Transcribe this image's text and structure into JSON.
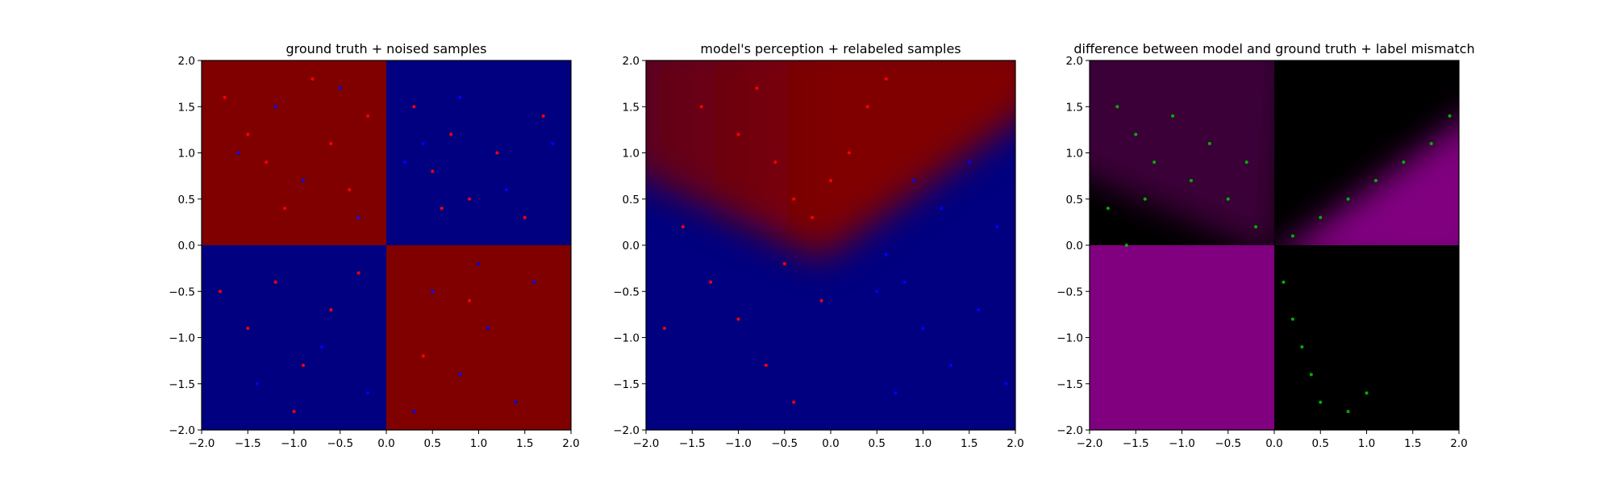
{
  "chart_data": [
    {
      "type": "heatmap",
      "title": "ground truth + noised samples",
      "xlabel": "",
      "ylabel": "",
      "xlim": [
        -2.0,
        2.0
      ],
      "ylim": [
        -2.0,
        2.0
      ],
      "xticks": [
        "−2.0",
        "−1.5",
        "−1.0",
        "−0.5",
        "0.0",
        "0.5",
        "1.0",
        "1.5",
        "2.0"
      ],
      "yticks": [
        "−2.0",
        "−1.5",
        "−1.0",
        "−0.5",
        "0.0",
        "0.5",
        "1.0",
        "1.5",
        "2.0"
      ],
      "grid": false,
      "background": {
        "kind": "quadrant-xor",
        "description_regions": [
          {
            "x": [
              -2,
              0
            ],
            "y": [
              0,
              2
            ],
            "color": "#800000"
          },
          {
            "x": [
              0,
              2
            ],
            "y": [
              0,
              2
            ],
            "color": "#000080"
          },
          {
            "x": [
              -2,
              0
            ],
            "y": [
              -2,
              0
            ],
            "color": "#000080"
          },
          {
            "x": [
              0,
              2
            ],
            "y": [
              -2,
              0
            ],
            "color": "#800000"
          }
        ]
      },
      "series": [
        {
          "color": "#ff0000",
          "marker": "dot",
          "values": [
            [
              -1.75,
              1.6
            ],
            [
              -1.5,
              1.2
            ],
            [
              -1.3,
              0.9
            ],
            [
              -1.1,
              0.4
            ],
            [
              -0.8,
              1.8
            ],
            [
              -0.6,
              1.1
            ],
            [
              -0.4,
              0.6
            ],
            [
              -0.2,
              1.4
            ],
            [
              0.3,
              1.5
            ],
            [
              0.5,
              0.8
            ],
            [
              0.7,
              1.2
            ],
            [
              0.9,
              0.5
            ],
            [
              1.2,
              1.0
            ],
            [
              1.5,
              0.3
            ],
            [
              1.7,
              1.4
            ],
            [
              0.6,
              0.4
            ],
            [
              -1.8,
              -0.5
            ],
            [
              -1.5,
              -0.9
            ],
            [
              -1.2,
              -0.4
            ],
            [
              -0.9,
              -1.3
            ],
            [
              -0.6,
              -0.7
            ],
            [
              -0.3,
              -0.3
            ],
            [
              -1.0,
              -1.8
            ],
            [
              0.4,
              -1.2
            ],
            [
              0.9,
              -0.6
            ]
          ]
        },
        {
          "color": "#0000ff",
          "marker": "dot",
          "values": [
            [
              -1.6,
              1.0
            ],
            [
              -1.2,
              1.5
            ],
            [
              -0.9,
              0.7
            ],
            [
              -0.5,
              1.7
            ],
            [
              -0.3,
              0.3
            ],
            [
              0.4,
              1.1
            ],
            [
              0.8,
              1.6
            ],
            [
              1.3,
              0.6
            ],
            [
              1.8,
              1.1
            ],
            [
              0.2,
              0.9
            ],
            [
              -1.4,
              -1.5
            ],
            [
              -0.7,
              -1.1
            ],
            [
              0.5,
              -0.5
            ],
            [
              0.8,
              -1.4
            ],
            [
              1.1,
              -0.9
            ],
            [
              1.4,
              -1.7
            ],
            [
              1.6,
              -0.4
            ],
            [
              0.3,
              -1.8
            ],
            [
              1.0,
              -0.2
            ],
            [
              -0.2,
              -1.6
            ]
          ]
        }
      ]
    },
    {
      "type": "heatmap",
      "title": "model's perception + relabeled samples",
      "xlabel": "",
      "ylabel": "",
      "xlim": [
        -2.0,
        2.0
      ],
      "ylim": [
        -2.0,
        2.0
      ],
      "xticks": [
        "−2.0",
        "−1.5",
        "−1.0",
        "−0.5",
        "0.0",
        "0.5",
        "1.0",
        "1.5",
        "2.0"
      ],
      "yticks": [
        "−2.0",
        "−1.5",
        "−1.0",
        "−0.5",
        "0.0",
        "0.5",
        "1.0",
        "1.5",
        "2.0"
      ],
      "grid": false,
      "background": {
        "kind": "wedge",
        "description": "red wedge opening upward above two diagonal lines meeting near (0, 0); blue elsewhere",
        "colors": {
          "upper": "#800000",
          "upper_left_corner": "#5a0020",
          "other": "#000080"
        }
      },
      "series": [
        {
          "color": "#ff0000",
          "marker": "dot",
          "values": [
            [
              -1.4,
              1.5
            ],
            [
              -1.0,
              1.2
            ],
            [
              -0.6,
              0.9
            ],
            [
              -0.4,
              0.5
            ],
            [
              -0.2,
              0.3
            ],
            [
              0.0,
              0.7
            ],
            [
              0.2,
              1.0
            ],
            [
              0.4,
              1.5
            ],
            [
              -0.8,
              1.7
            ],
            [
              0.6,
              1.8
            ],
            [
              -1.6,
              0.2
            ],
            [
              -1.3,
              -0.4
            ],
            [
              -1.0,
              -0.8
            ],
            [
              -0.7,
              -1.3
            ],
            [
              -0.4,
              -1.7
            ],
            [
              -0.1,
              -0.6
            ],
            [
              -1.8,
              -0.9
            ],
            [
              -0.5,
              -0.2
            ]
          ]
        },
        {
          "color": "#0000ff",
          "marker": "dot",
          "values": [
            [
              0.9,
              0.7
            ],
            [
              1.2,
              0.4
            ],
            [
              1.5,
              0.9
            ],
            [
              1.8,
              0.2
            ],
            [
              0.6,
              -0.1
            ],
            [
              0.5,
              -0.5
            ],
            [
              0.8,
              -0.4
            ],
            [
              1.0,
              -0.9
            ],
            [
              1.3,
              -1.3
            ],
            [
              1.6,
              -0.7
            ],
            [
              0.7,
              -1.6
            ],
            [
              1.9,
              -1.5
            ]
          ]
        }
      ]
    },
    {
      "type": "heatmap",
      "title": "difference between model and ground truth + label mismatch",
      "xlabel": "",
      "ylabel": "",
      "xlim": [
        -2.0,
        2.0
      ],
      "ylim": [
        -2.0,
        2.0
      ],
      "xticks": [
        "−2.0",
        "−1.5",
        "−1.0",
        "−0.5",
        "0.0",
        "0.5",
        "1.0",
        "1.5",
        "2.0"
      ],
      "yticks": [
        "−2.0",
        "−1.5",
        "−1.0",
        "−0.5",
        "0.0",
        "0.5",
        "1.0",
        "1.5",
        "2.0"
      ],
      "grid": false,
      "background": {
        "kind": "difference",
        "colors": {
          "magenta": "#800080",
          "dark_purple": "#3a0038",
          "black": "#000000"
        }
      },
      "series": [
        {
          "color": "#00b000",
          "marker": "dot",
          "values": [
            [
              -1.7,
              1.5
            ],
            [
              -1.5,
              1.2
            ],
            [
              -1.3,
              0.9
            ],
            [
              -1.1,
              1.4
            ],
            [
              -0.9,
              0.7
            ],
            [
              -0.7,
              1.1
            ],
            [
              -0.5,
              0.5
            ],
            [
              -0.3,
              0.9
            ],
            [
              -0.2,
              0.2
            ],
            [
              -1.8,
              0.4
            ],
            [
              -1.4,
              0.5
            ],
            [
              -1.6,
              0.0
            ],
            [
              0.2,
              0.1
            ],
            [
              0.5,
              0.3
            ],
            [
              0.8,
              0.5
            ],
            [
              1.1,
              0.7
            ],
            [
              1.4,
              0.9
            ],
            [
              1.7,
              1.1
            ],
            [
              1.9,
              1.4
            ],
            [
              0.1,
              -0.4
            ],
            [
              0.2,
              -0.8
            ],
            [
              0.3,
              -1.1
            ],
            [
              0.4,
              -1.4
            ],
            [
              0.5,
              -1.7
            ],
            [
              0.8,
              -1.8
            ],
            [
              1.0,
              -1.6
            ]
          ]
        }
      ]
    }
  ]
}
